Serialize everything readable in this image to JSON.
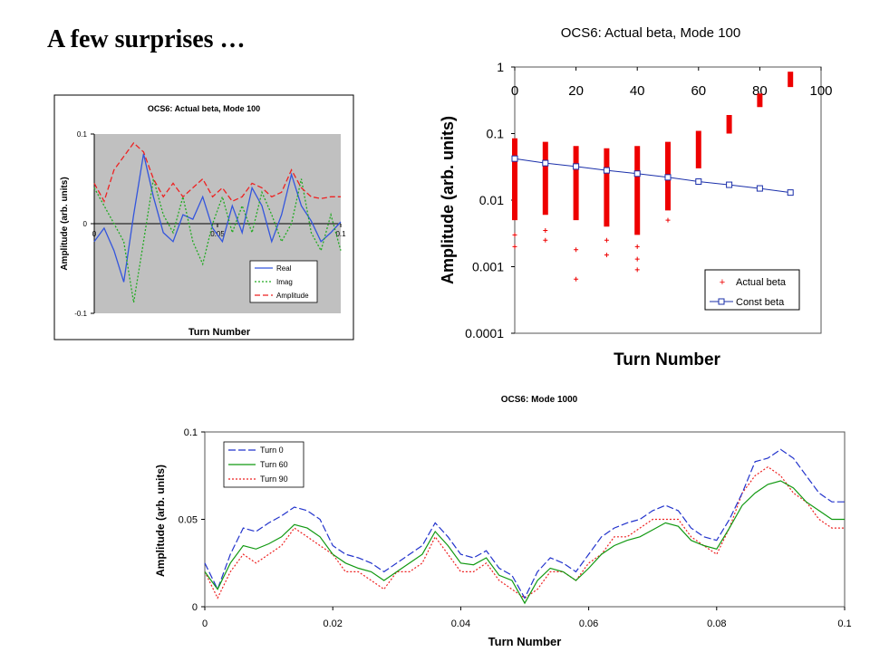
{
  "slide": {
    "title": "A few surprises …"
  },
  "chart_data": [
    {
      "id": "chart1",
      "type": "line",
      "title": "OCS6: Actual beta, Mode 100",
      "xlabel": "Turn Number",
      "ylabel": "Amplitude (arb. units)",
      "xlim": [
        0,
        0.1
      ],
      "ylim": [
        -0.1,
        0.1
      ],
      "xticks": [
        "0",
        "0.05",
        "0.1"
      ],
      "yticks": [
        "-0.1",
        "0",
        "0.1"
      ],
      "grid": false,
      "legend_position": "bottom-right",
      "colors": {
        "plot_area": "#c0c0c0",
        "Real": "#3355dd",
        "Imag": "#22aa22",
        "Amplitude": "#ee2222"
      },
      "x": [
        0,
        0.004,
        0.008,
        0.012,
        0.016,
        0.02,
        0.024,
        0.028,
        0.032,
        0.036,
        0.04,
        0.044,
        0.048,
        0.052,
        0.056,
        0.06,
        0.064,
        0.068,
        0.072,
        0.076,
        0.08,
        0.084,
        0.088,
        0.092,
        0.096,
        0.1
      ],
      "series": [
        {
          "name": "Real",
          "values": [
            -0.02,
            -0.005,
            -0.03,
            -0.065,
            0.01,
            0.078,
            0.03,
            -0.01,
            -0.02,
            0.01,
            0.005,
            0.03,
            -0.005,
            -0.02,
            0.02,
            -0.01,
            0.04,
            0.02,
            -0.02,
            0.01,
            0.055,
            0.02,
            0.003,
            -0.02,
            -0.01,
            0.002
          ]
        },
        {
          "name": "Imag",
          "values": [
            0.04,
            0.02,
            0.0,
            -0.02,
            -0.088,
            -0.02,
            0.05,
            0.01,
            -0.01,
            0.03,
            -0.02,
            -0.045,
            0.0,
            0.03,
            -0.01,
            0.02,
            -0.01,
            0.035,
            0.01,
            -0.02,
            0.0,
            0.05,
            -0.01,
            -0.03,
            0.01,
            -0.03
          ]
        },
        {
          "name": "Amplitude",
          "values": [
            0.045,
            0.025,
            0.06,
            0.075,
            0.09,
            0.08,
            0.05,
            0.03,
            0.045,
            0.03,
            0.04,
            0.05,
            0.03,
            0.04,
            0.025,
            0.03,
            0.045,
            0.04,
            0.03,
            0.035,
            0.06,
            0.04,
            0.03,
            0.028,
            0.03,
            0.03
          ]
        }
      ]
    },
    {
      "id": "chart2",
      "type": "scatter",
      "title": "OCS6: Actual beta, Mode 100",
      "xlabel": "Turn Number",
      "ylabel": "Amplitude (arb. units)",
      "xlim": [
        0,
        100
      ],
      "ylim": [
        0.0001,
        1
      ],
      "yscale": "log",
      "xticks": [
        "0",
        "20",
        "40",
        "60",
        "80",
        "100"
      ],
      "yticks": [
        "1",
        "0.1",
        "0.01",
        "0.001",
        "0.0001"
      ],
      "grid": false,
      "legend_position": "bottom-right",
      "colors": {
        "Actual beta": "#ee0000",
        "Const beta": "#1a2faa"
      },
      "series": [
        {
          "name": "Actual beta",
          "columns": [
            {
              "x": 0,
              "ymin": 0.005,
              "ymax": 0.085,
              "outliers": [
                0.003,
                0.002
              ]
            },
            {
              "x": 10,
              "ymin": 0.006,
              "ymax": 0.075,
              "outliers": [
                0.0035,
                0.0025
              ]
            },
            {
              "x": 20,
              "ymin": 0.005,
              "ymax": 0.065,
              "outliers": [
                0.0018,
                0.00065
              ]
            },
            {
              "x": 30,
              "ymin": 0.004,
              "ymax": 0.06,
              "outliers": [
                0.0025,
                0.0015
              ]
            },
            {
              "x": 40,
              "ymin": 0.003,
              "ymax": 0.065,
              "outliers": [
                0.002,
                0.0013,
                0.0009
              ]
            },
            {
              "x": 50,
              "ymin": 0.007,
              "ymax": 0.075,
              "outliers": [
                0.005
              ]
            },
            {
              "x": 60,
              "ymin": 0.03,
              "ymax": 0.11,
              "outliers": []
            },
            {
              "x": 70,
              "ymin": 0.1,
              "ymax": 0.19,
              "outliers": []
            },
            {
              "x": 80,
              "ymin": 0.25,
              "ymax": 0.4,
              "outliers": []
            },
            {
              "x": 90,
              "ymin": 0.5,
              "ymax": 0.85,
              "outliers": []
            }
          ]
        },
        {
          "name": "Const beta",
          "x": [
            0,
            10,
            20,
            30,
            40,
            50,
            60,
            70,
            80,
            90
          ],
          "values": [
            0.042,
            0.036,
            0.032,
            0.028,
            0.025,
            0.022,
            0.019,
            0.017,
            0.015,
            0.013
          ]
        }
      ]
    },
    {
      "id": "chart3",
      "type": "line",
      "title": "OCS6: Mode 1000",
      "xlabel": "Turn Number",
      "ylabel": "Amplitude (arb. units)",
      "xlim": [
        0,
        0.1
      ],
      "ylim": [
        0,
        0.1
      ],
      "xticks": [
        "0",
        "0.02",
        "0.04",
        "0.06",
        "0.08",
        "0.1"
      ],
      "yticks": [
        "0",
        "0.05",
        "0.1"
      ],
      "grid": false,
      "legend_position": "top-left",
      "colors": {
        "Turn 0": "#2233cc",
        "Turn 60": "#119911",
        "Turn 90": "#ee2222"
      },
      "x": [
        0,
        0.002,
        0.004,
        0.006,
        0.008,
        0.01,
        0.012,
        0.014,
        0.016,
        0.018,
        0.02,
        0.022,
        0.024,
        0.026,
        0.028,
        0.03,
        0.032,
        0.034,
        0.036,
        0.038,
        0.04,
        0.042,
        0.044,
        0.046,
        0.048,
        0.05,
        0.052,
        0.054,
        0.056,
        0.058,
        0.06,
        0.062,
        0.064,
        0.066,
        0.068,
        0.07,
        0.072,
        0.074,
        0.076,
        0.078,
        0.08,
        0.082,
        0.084,
        0.086,
        0.088,
        0.09,
        0.092,
        0.094,
        0.096,
        0.098,
        0.1
      ],
      "series": [
        {
          "name": "Turn 0",
          "values": [
            0.025,
            0.01,
            0.03,
            0.045,
            0.043,
            0.048,
            0.052,
            0.057,
            0.055,
            0.05,
            0.035,
            0.03,
            0.028,
            0.025,
            0.02,
            0.025,
            0.03,
            0.035,
            0.048,
            0.04,
            0.03,
            0.028,
            0.032,
            0.022,
            0.018,
            0.005,
            0.02,
            0.028,
            0.025,
            0.02,
            0.03,
            0.04,
            0.045,
            0.048,
            0.05,
            0.055,
            0.058,
            0.055,
            0.045,
            0.04,
            0.038,
            0.05,
            0.065,
            0.083,
            0.085,
            0.09,
            0.085,
            0.075,
            0.065,
            0.06,
            0.06
          ]
        },
        {
          "name": "Turn 60",
          "values": [
            0.02,
            0.01,
            0.025,
            0.035,
            0.033,
            0.036,
            0.04,
            0.047,
            0.045,
            0.04,
            0.03,
            0.025,
            0.022,
            0.02,
            0.015,
            0.02,
            0.025,
            0.03,
            0.043,
            0.035,
            0.025,
            0.024,
            0.028,
            0.018,
            0.015,
            0.002,
            0.015,
            0.022,
            0.02,
            0.015,
            0.022,
            0.03,
            0.035,
            0.038,
            0.04,
            0.044,
            0.048,
            0.046,
            0.038,
            0.035,
            0.033,
            0.045,
            0.058,
            0.065,
            0.07,
            0.072,
            0.068,
            0.06,
            0.055,
            0.05,
            0.05
          ]
        },
        {
          "name": "Turn 90",
          "values": [
            0.02,
            0.005,
            0.02,
            0.03,
            0.025,
            0.03,
            0.035,
            0.045,
            0.04,
            0.035,
            0.03,
            0.02,
            0.02,
            0.015,
            0.01,
            0.02,
            0.02,
            0.025,
            0.04,
            0.03,
            0.02,
            0.02,
            0.025,
            0.015,
            0.01,
            0.005,
            0.01,
            0.02,
            0.02,
            0.015,
            0.025,
            0.03,
            0.04,
            0.04,
            0.045,
            0.05,
            0.05,
            0.05,
            0.04,
            0.035,
            0.03,
            0.045,
            0.065,
            0.075,
            0.08,
            0.075,
            0.065,
            0.06,
            0.05,
            0.045,
            0.045
          ]
        }
      ]
    }
  ]
}
